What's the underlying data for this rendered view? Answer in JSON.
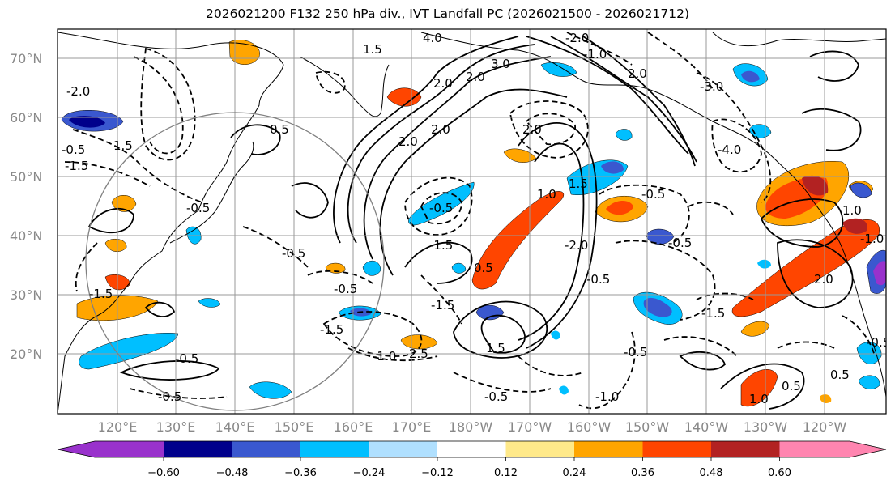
{
  "title": "2026021200 F132 250 hPa div., IVT Landfall PC (2026021500 - 2026021712)",
  "map": {
    "lat_labels": [
      "70°N",
      "60°N",
      "50°N",
      "40°N",
      "30°N",
      "20°N"
    ],
    "lon_labels": [
      "120°E",
      "130°E",
      "140°E",
      "150°E",
      "160°E",
      "170°E",
      "180°W",
      "170°W",
      "160°W",
      "150°W",
      "140°W",
      "130°W",
      "120°W"
    ],
    "contour_labels": [
      "4.0",
      "1.5",
      "3.0",
      "2.0",
      "2.0",
      "-2.0",
      "-1.0",
      "-2.0",
      "-3.0",
      "-4.0",
      "0.5",
      "-0.5",
      "1.5",
      "2.0",
      "-1.5",
      "-0.5",
      "-0.5",
      "-0.5",
      "-1.5",
      "2.0",
      "-0.5",
      "-1.0",
      "2.5",
      "1.0",
      "-0.5",
      "-0.5",
      "1.5",
      "-1.5",
      "-2.0",
      "1.5",
      "-0.5",
      "-1.0",
      "-1.5",
      "-0.5",
      "-0.5",
      "-1.5",
      "2.0",
      "-0.5",
      "1.0",
      "0.5",
      "-1.0",
      "-0.5",
      "2.0",
      "-0.5",
      "2.0",
      "0.5",
      "1.0",
      "-1.5",
      "0.5"
    ]
  },
  "colorbar": {
    "colors": [
      "#9932cc",
      "#00008b",
      "#3a58cf",
      "#00bfff",
      "#b0e0ff",
      "#ffffff",
      "#ffe98a",
      "#ffa500",
      "#ff4500",
      "#b22222",
      "#ff85b0"
    ],
    "tick_labels": [
      "−0.60",
      "−0.48",
      "−0.36",
      "−0.24",
      "−0.12",
      "0.12",
      "0.24",
      "0.36",
      "0.48",
      "0.60"
    ]
  }
}
